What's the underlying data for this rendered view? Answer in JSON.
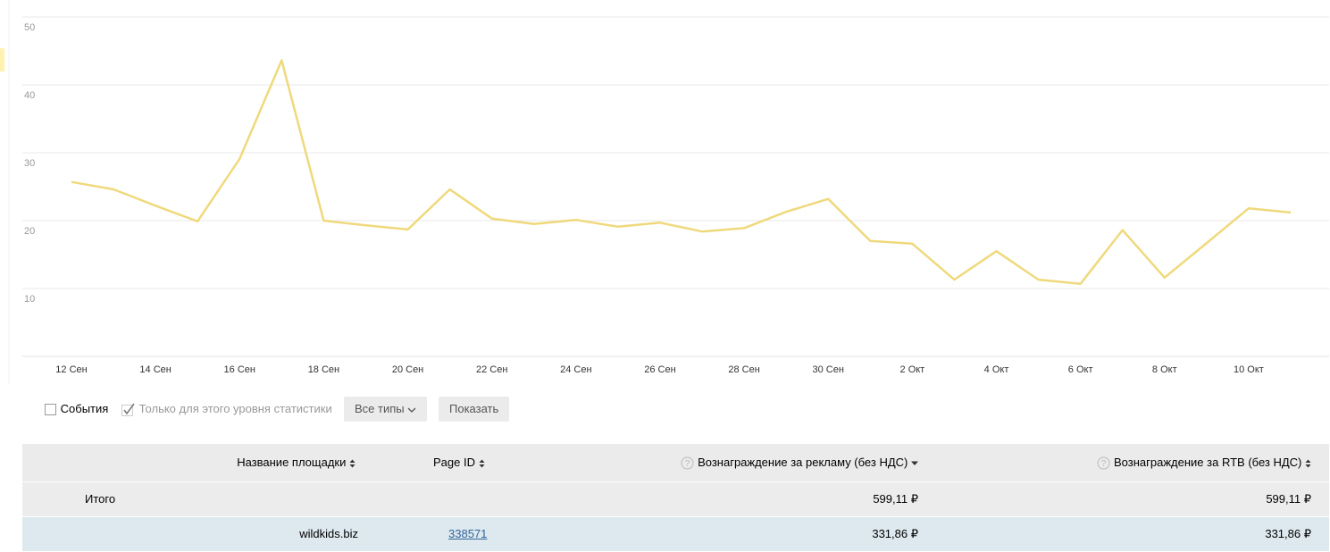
{
  "chart_data": {
    "type": "line",
    "categories": [
      "12 Сен",
      null,
      "14 Сен",
      null,
      "16 Сен",
      null,
      "18 Сен",
      null,
      "20 Сен",
      null,
      "22 Сен",
      null,
      "24 Сен",
      null,
      "26 Сен",
      null,
      "28 Сен",
      null,
      "30 Сен",
      null,
      "2 Окт",
      null,
      "4 Окт",
      null,
      "6 Окт",
      null,
      "8 Окт",
      null,
      "10 Окт",
      null
    ],
    "values": [
      25.7,
      24.6,
      22.2,
      19.9,
      29.1,
      43.6,
      20.0,
      19.3,
      18.7,
      24.6,
      20.3,
      19.5,
      20.1,
      19.1,
      19.7,
      18.4,
      18.9,
      21.3,
      23.2,
      17.0,
      16.6,
      11.3,
      15.5,
      11.3,
      10.7,
      18.6,
      11.6,
      16.7,
      21.8,
      21.2
    ],
    "color": "#efd97c",
    "ylim": [
      0,
      50
    ],
    "yticks": [
      10,
      20,
      30,
      40,
      50
    ],
    "grid": true
  },
  "controls": {
    "events": "События",
    "this_level_only": "Только для этого уровня статистики",
    "types": "Все типы",
    "show": "Показать"
  },
  "table": {
    "header": {
      "site": "Название площадки",
      "page_id": "Page ID",
      "ad_reward": "Вознаграждение за рекламу (без НДС)",
      "rtb_reward": "Вознаграждение за RTB (без НДС)"
    },
    "total": {
      "label": "Итого",
      "ad_reward": "599,11 ₽",
      "rtb_reward": "599,11 ₽"
    },
    "rows": [
      {
        "site": "wildkids.biz",
        "page_id": "338571",
        "ad_reward": "331,86 ₽",
        "rtb_reward": "331,86 ₽"
      }
    ]
  }
}
